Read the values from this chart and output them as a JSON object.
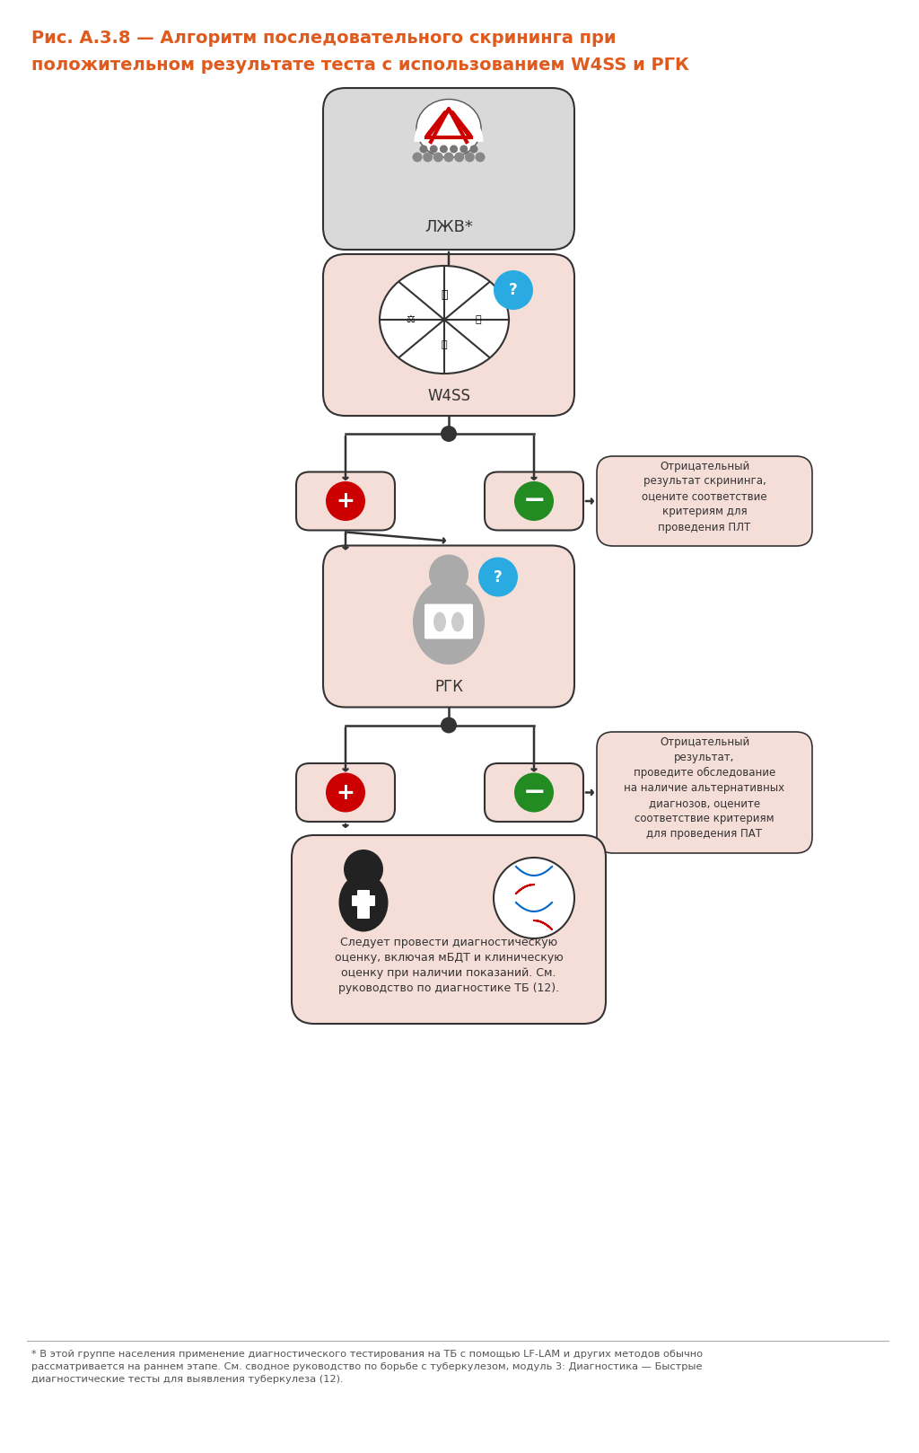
{
  "title_line1": "Рис. А.3.8 — Алгоритм последовательного скрининга при",
  "title_line2": "положительном результате теста с использованием W4SS и РГК",
  "title_color": "#E05A1E",
  "bg_color": "#FFFFFF",
  "box_salmon": "#F5DDD8",
  "box_gray": "#D9D9D9",
  "box_border": "#333333",
  "arrow_color": "#333333",
  "label_ljv": "ЛЖВ*",
  "label_w4ss": "W4SS",
  "label_rgk": "РГК",
  "note_text1": "Отрицательный\nрезультат скрининга,\nоцените соответствие\nкритериям для\nпроведения ПЛТ",
  "note_text2": "Отрицательный\nрезультат,\nпроведите обследование\nна наличие альтернативных\nдиагнозов, оцените\nсоответствие критериям\nдля проведения ПАТ",
  "final_text": "Следует провести диагностическую\nоценку, включая мБДТ и клиническую\nоценку при наличии показаний. См.\nруководство по диагностике ТБ (12).",
  "footnote": "* В этой группе населения применение диагностического тестирования на ТБ с помощью LF-LAM и других методов обычно\nрассматривается на раннем этапе. См. сводное руководство по борьбе с туберкулезом, модуль 3: Диагностика — Быстрые\nдиагностические тесты для выявления туберкулеза (12).",
  "plus_color": "#CC0000",
  "minus_color": "#228B22",
  "question_color": "#29ABE2",
  "dot_color": "#333333"
}
